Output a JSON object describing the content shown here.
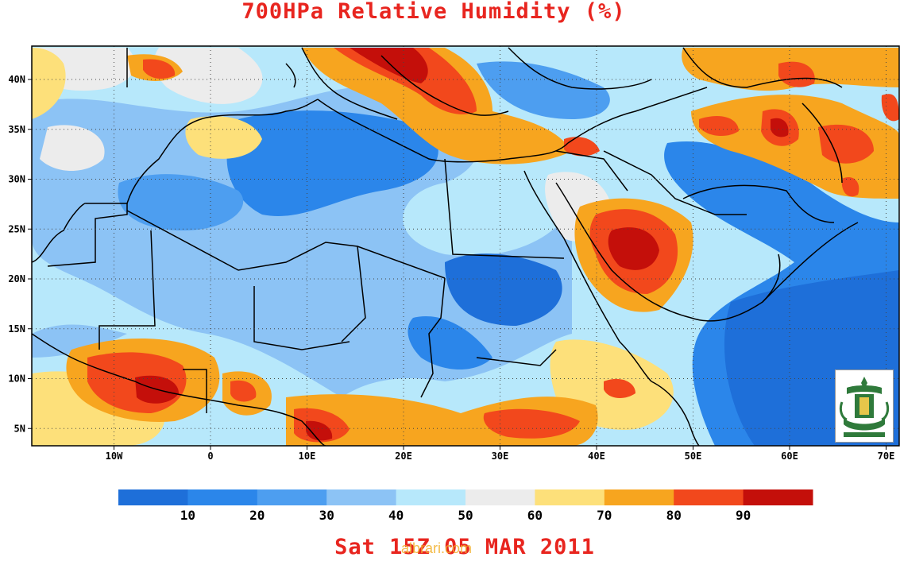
{
  "title": "700HPa Relative Humidity (%)",
  "footer": "Sat 15Z 05 MAR 2011",
  "watermark": "albrari.com",
  "lon_labels": [
    "10W",
    "0",
    "10E",
    "20E",
    "30E",
    "40E",
    "50E",
    "60E",
    "70E"
  ],
  "lon_values": [
    -10,
    0,
    10,
    20,
    30,
    40,
    50,
    60,
    70
  ],
  "lat_labels": [
    "40N",
    "35N",
    "30N",
    "25N",
    "20N",
    "15N",
    "10N",
    "5N"
  ],
  "lat_values": [
    40,
    35,
    30,
    25,
    20,
    15,
    10,
    5
  ],
  "colorbar": {
    "labels": [
      "10",
      "20",
      "30",
      "40",
      "50",
      "60",
      "70",
      "80",
      "90"
    ],
    "colors": [
      "#1e6fd9",
      "#2b86ea",
      "#4d9ef0",
      "#8cc3f5",
      "#b7e8fb",
      "#ececec",
      "#fde07a",
      "#f7a51f",
      "#f2481c",
      "#c40f0a"
    ]
  },
  "logo": "university-emblem-icon"
}
